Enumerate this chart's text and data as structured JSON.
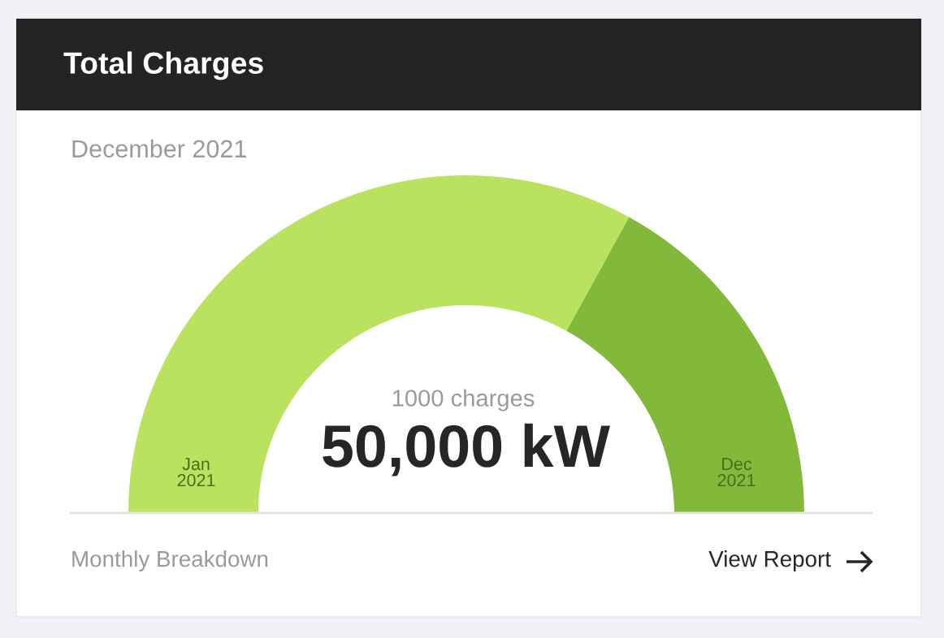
{
  "chart_data": {
    "type": "donut",
    "title": "Total Charges",
    "subtitle": "December 2021",
    "categories": [
      "Jan\n2021",
      "Dec\n2021"
    ],
    "values": [
      66,
      34
    ],
    "colors": [
      "#b9e35e",
      "#82b93a"
    ],
    "annotations": [
      "1000 charges",
      "50,000 kW",
      "Monthly Breakdown",
      "View Report"
    ]
  }
}
